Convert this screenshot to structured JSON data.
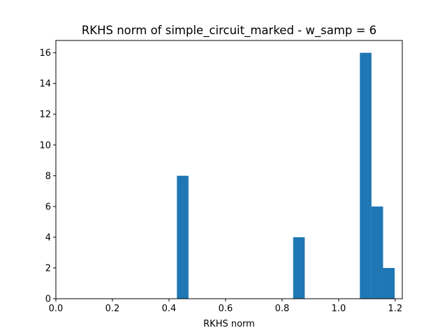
{
  "chart_data": {
    "type": "bar",
    "subtype": "histogram",
    "title": "RKHS norm of simple_circuit_marked - w_samp = 6",
    "xlabel": "RKHS norm",
    "ylabel": "",
    "xlim": [
      0.0,
      1.225
    ],
    "ylim": [
      0,
      16.8
    ],
    "xticks": [
      0.0,
      0.2,
      0.4,
      0.6,
      0.8,
      1.0,
      1.2
    ],
    "xtick_labels": [
      "0.0",
      "0.2",
      "0.4",
      "0.6",
      "0.8",
      "1.0",
      "1.2"
    ],
    "yticks": [
      0,
      2,
      4,
      6,
      8,
      10,
      12,
      14,
      16
    ],
    "ytick_labels": [
      "0",
      "2",
      "4",
      "6",
      "8",
      "10",
      "12",
      "14",
      "16"
    ],
    "grid": false,
    "bar_color": "#1f77b4",
    "bins": [
      {
        "x0": 0.428,
        "x1": 0.469,
        "count": 8
      },
      {
        "x0": 0.839,
        "x1": 0.88,
        "count": 4
      },
      {
        "x0": 1.075,
        "x1": 1.116,
        "count": 16
      },
      {
        "x0": 1.116,
        "x1": 1.157,
        "count": 6
      },
      {
        "x0": 1.157,
        "x1": 1.198,
        "count": 2
      }
    ]
  }
}
